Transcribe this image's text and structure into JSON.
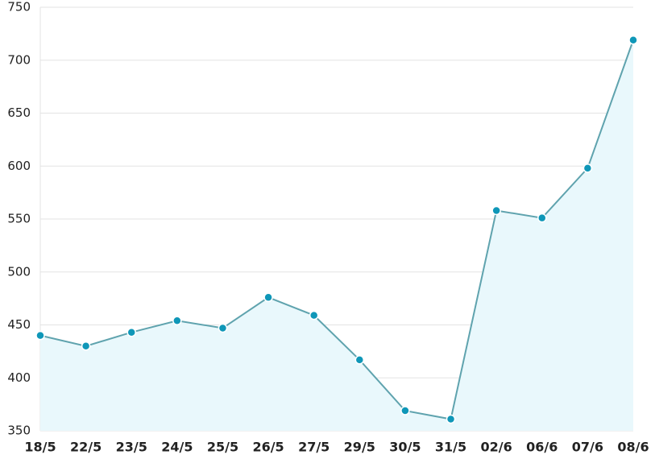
{
  "chart_data": {
    "type": "line",
    "categories": [
      "18/5",
      "22/5",
      "23/5",
      "24/5",
      "25/5",
      "26/5",
      "27/5",
      "29/5",
      "30/5",
      "31/5",
      "02/6",
      "06/6",
      "07/6",
      "08/6"
    ],
    "series": [
      {
        "color": "#0f97b8",
        "values": [
          440,
          430,
          443,
          454,
          447,
          476,
          459,
          417,
          369,
          361,
          558,
          551,
          598,
          719
        ]
      }
    ],
    "line_color": "#5fa3ae",
    "area_color": "#e9f8fc",
    "ylim": [
      350,
      750
    ],
    "yticks": [
      350,
      400,
      450,
      500,
      550,
      600,
      650,
      700,
      750
    ],
    "grid": true
  }
}
